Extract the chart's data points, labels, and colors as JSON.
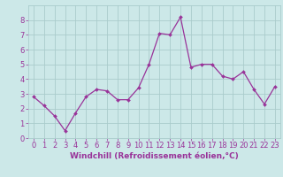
{
  "x": [
    0,
    1,
    2,
    3,
    4,
    5,
    6,
    7,
    8,
    9,
    10,
    11,
    12,
    13,
    14,
    15,
    16,
    17,
    18,
    19,
    20,
    21,
    22,
    23
  ],
  "y": [
    2.8,
    2.2,
    1.5,
    0.5,
    1.7,
    2.8,
    3.3,
    3.2,
    2.6,
    2.6,
    3.4,
    5.0,
    7.1,
    7.0,
    8.2,
    4.8,
    5.0,
    5.0,
    4.2,
    4.0,
    4.5,
    3.3,
    2.3,
    3.5
  ],
  "line_color": "#993399",
  "marker_color": "#993399",
  "bg_color": "#cce8e8",
  "grid_color": "#aacccc",
  "xlabel": "Windchill (Refroidissement éolien,°C)",
  "xlabel_color": "#993399",
  "xlabel_fontsize": 6.5,
  "tick_label_color": "#993399",
  "tick_fontsize": 6.0,
  "ylim": [
    0,
    9
  ],
  "xlim": [
    -0.5,
    23.5
  ],
  "yticks": [
    0,
    1,
    2,
    3,
    4,
    5,
    6,
    7,
    8
  ],
  "xticks": [
    0,
    1,
    2,
    3,
    4,
    5,
    6,
    7,
    8,
    9,
    10,
    11,
    12,
    13,
    14,
    15,
    16,
    17,
    18,
    19,
    20,
    21,
    22,
    23
  ]
}
